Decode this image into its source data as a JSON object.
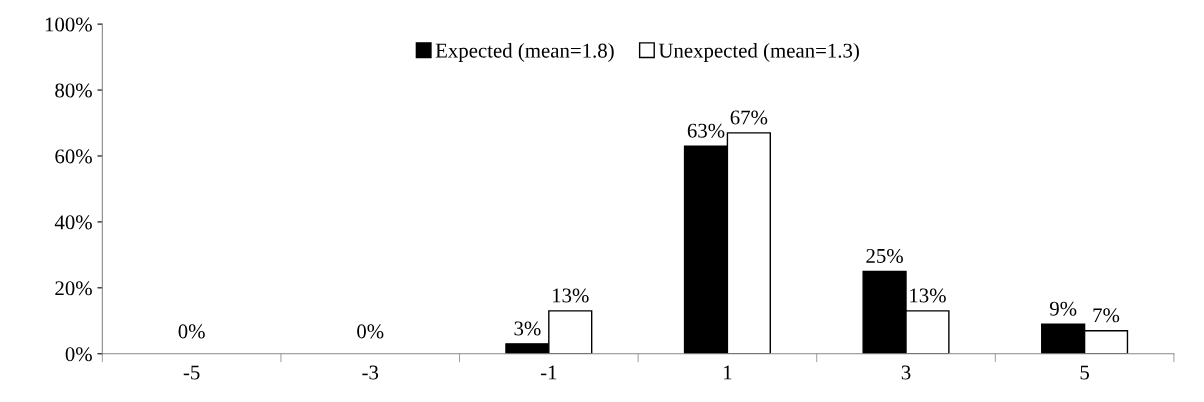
{
  "chart_data": {
    "type": "bar",
    "categories": [
      "-5",
      "-3",
      "-1",
      "1",
      "3",
      "5"
    ],
    "series": [
      {
        "name": "Expected (mean=1.8)",
        "color": "#000000",
        "values": [
          0,
          0,
          3,
          63,
          25,
          9
        ],
        "value_labels": [
          null,
          null,
          "3%",
          "63%",
          "25%",
          "9%"
        ]
      },
      {
        "name": "Unexpected (mean=1.3)",
        "color": "#ffffff",
        "values": [
          0,
          0,
          13,
          67,
          13,
          7
        ],
        "value_labels": [
          null,
          null,
          "13%",
          "67%",
          "13%",
          "7%"
        ]
      }
    ],
    "annotations": [
      {
        "text": "0%",
        "x": "-5",
        "y": 0
      },
      {
        "text": "0%",
        "x": "-3",
        "y": 0
      }
    ],
    "ylim": [
      0,
      100
    ],
    "yticks": [
      {
        "value": 0,
        "label": "0%"
      },
      {
        "value": 20,
        "label": "20%"
      },
      {
        "value": 40,
        "label": "40%"
      },
      {
        "value": 60,
        "label": "60%"
      },
      {
        "value": 80,
        "label": "80%"
      },
      {
        "value": 100,
        "label": "100%"
      }
    ],
    "grid": false,
    "legend": "top"
  }
}
